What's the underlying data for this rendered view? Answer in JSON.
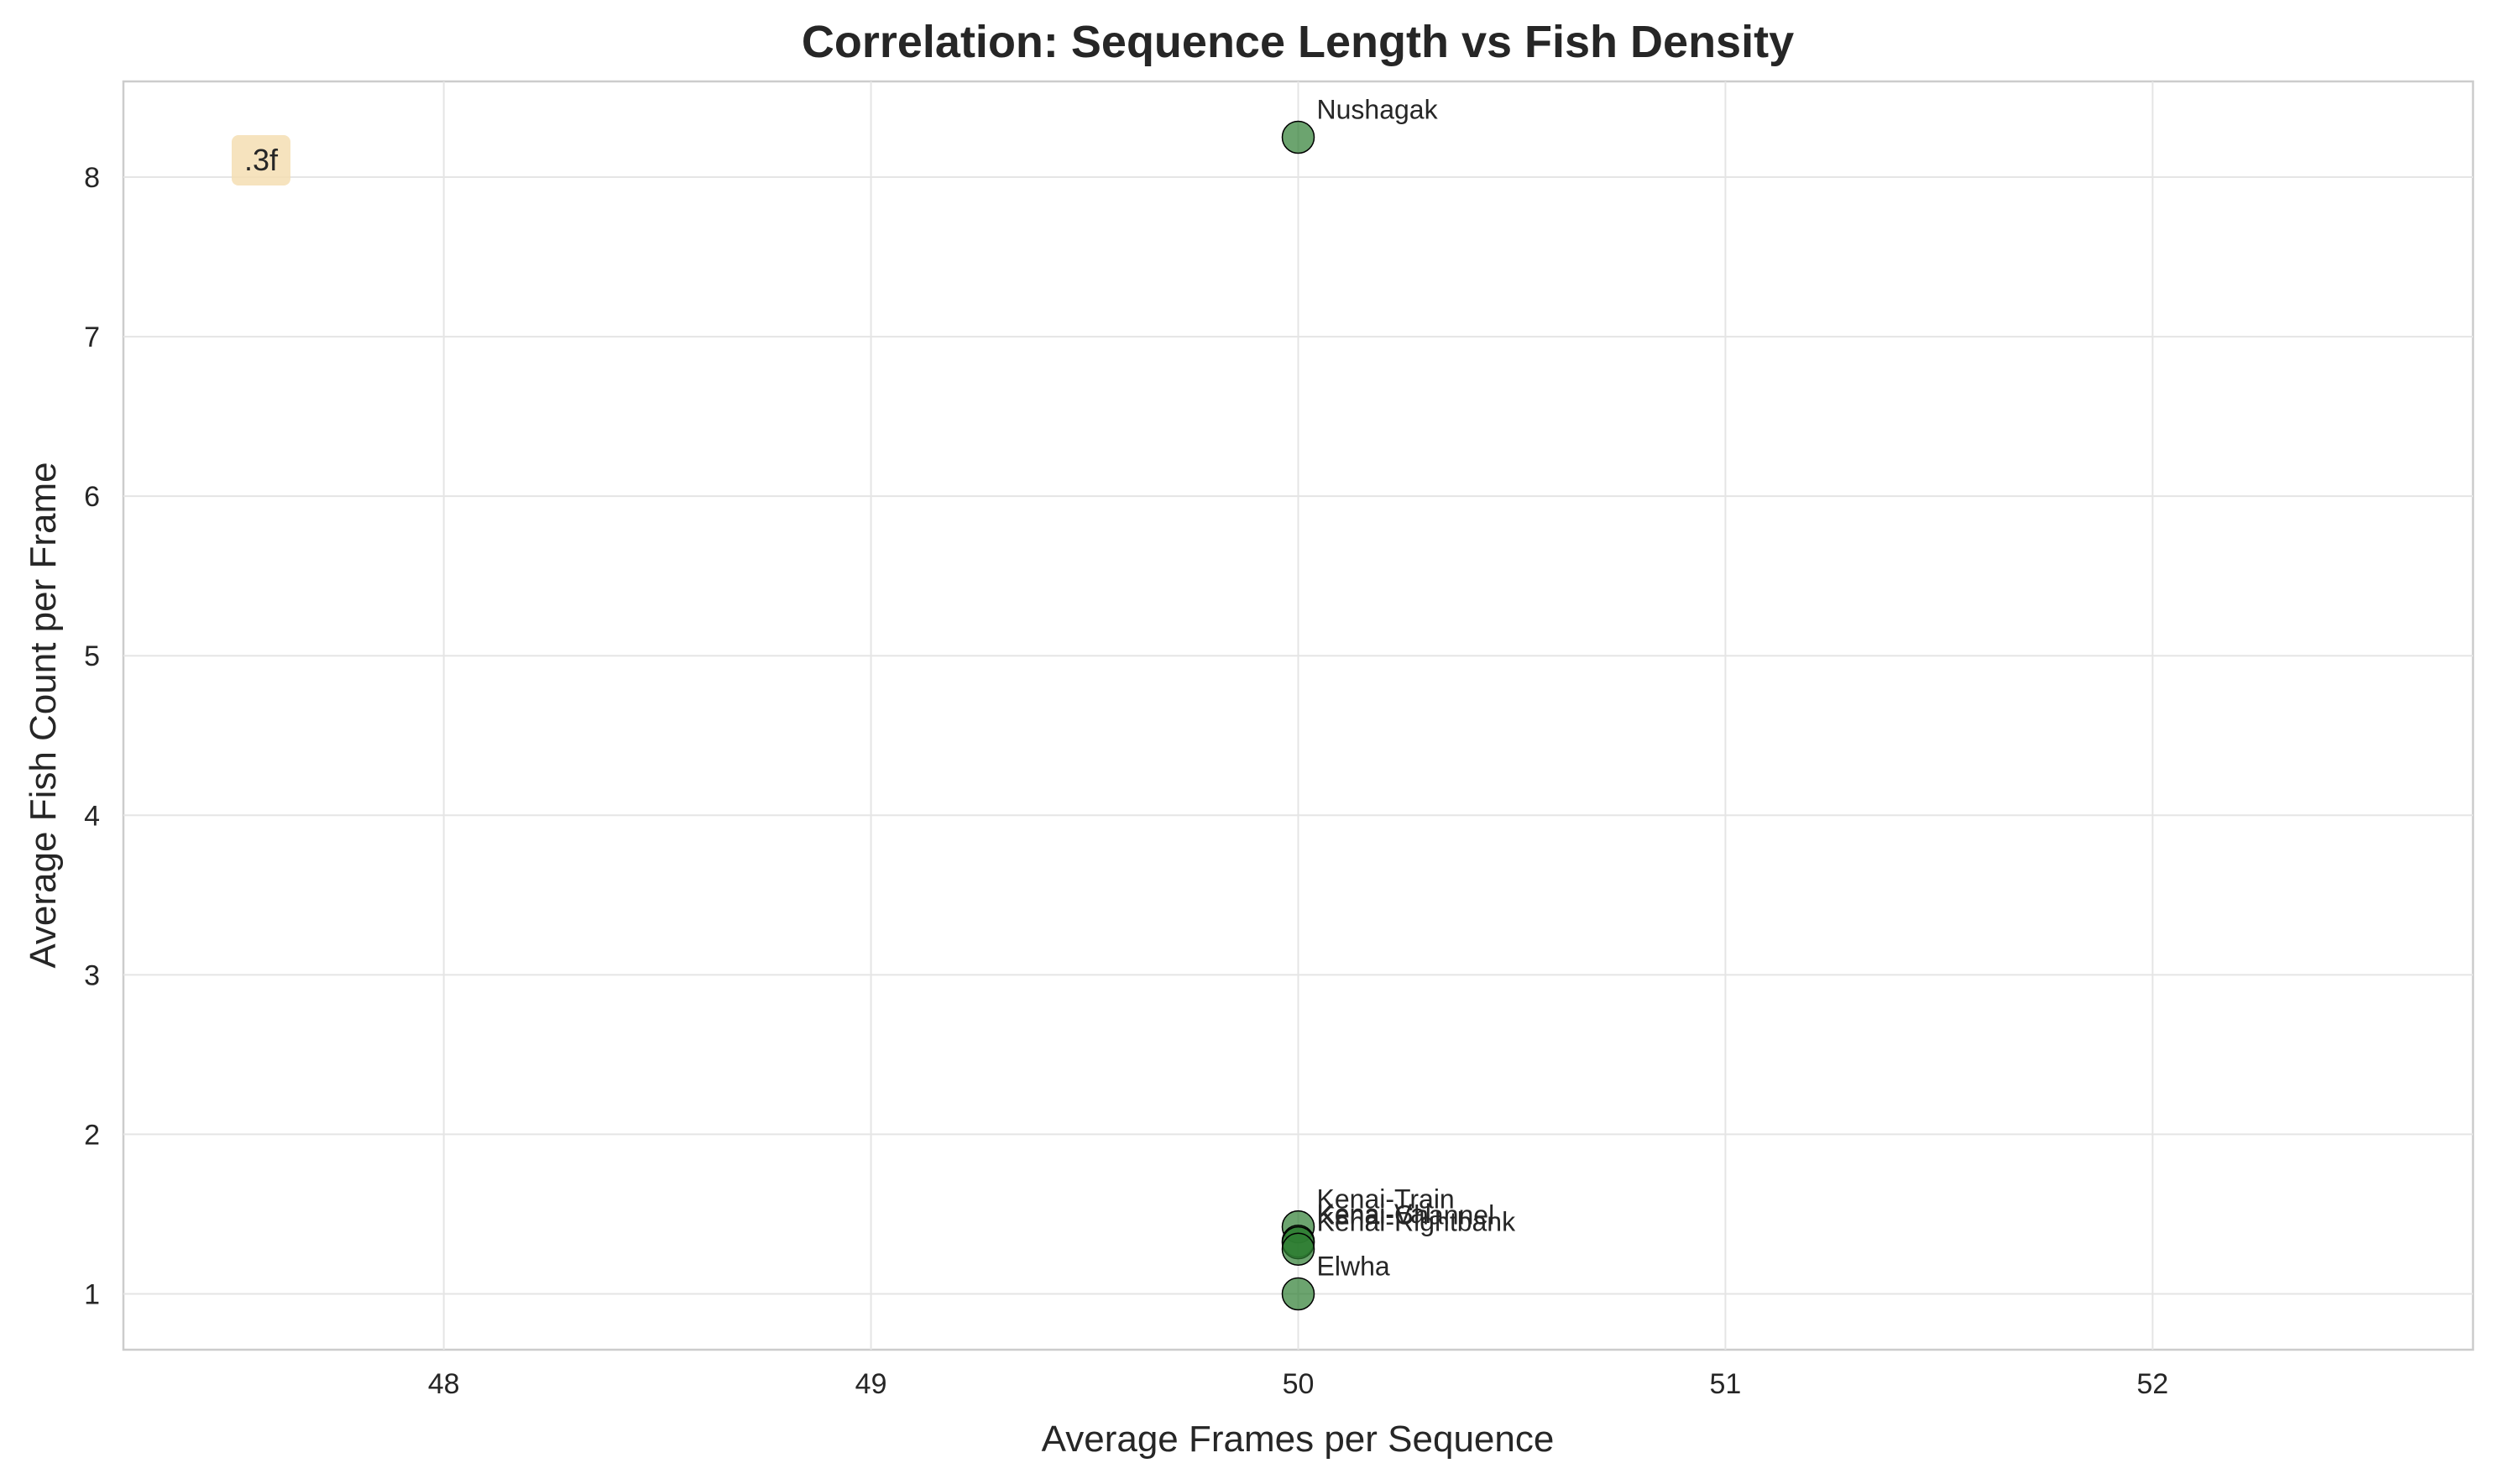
{
  "chart_data": {
    "type": "scatter",
    "title": "Correlation: Sequence Length vs Fish Density",
    "xlabel": "Average Frames per Sequence",
    "ylabel": "Average Fish Count per Frame",
    "xlim": [
      47.25,
      52.75
    ],
    "ylim": [
      0.65,
      8.6
    ],
    "xticks": [
      48,
      49,
      50,
      51,
      52
    ],
    "yticks": [
      1,
      2,
      3,
      4,
      5,
      6,
      7,
      8
    ],
    "grid": true,
    "marker_color": "#2e7d32",
    "points": [
      {
        "label": "Nushagak",
        "x": 50,
        "y": 8.25
      },
      {
        "label": "Kenai-Train",
        "x": 50,
        "y": 1.42
      },
      {
        "label": "Kenai-Val",
        "x": 50,
        "y": 1.33
      },
      {
        "label": "Kenai-Channel",
        "x": 50,
        "y": 1.32
      },
      {
        "label": "Kenai-Rightbank",
        "x": 50,
        "y": 1.28
      },
      {
        "label": "Elwha",
        "x": 50,
        "y": 1.0
      }
    ],
    "annotation": ".3f"
  }
}
